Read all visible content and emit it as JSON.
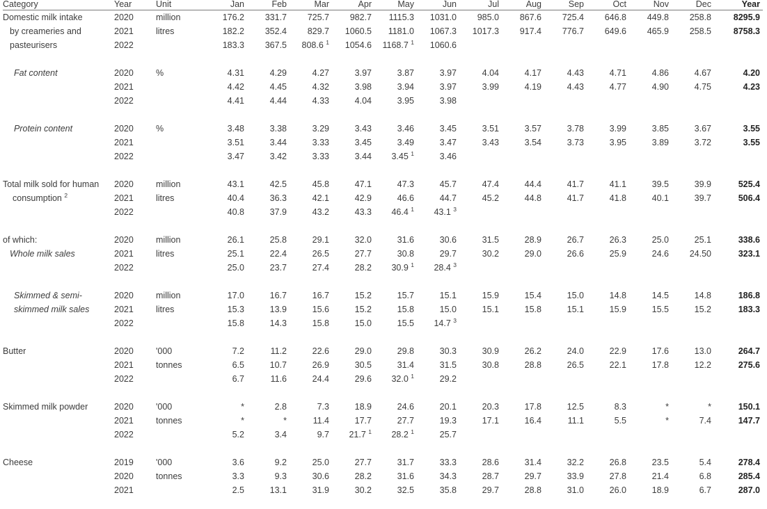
{
  "headers": [
    "Category",
    "Year",
    "Unit",
    "Jan",
    "Feb",
    "Mar",
    "Apr",
    "May",
    "Jun",
    "Jul",
    "Aug",
    "Sep",
    "Oct",
    "Nov",
    "Dec",
    "Year"
  ],
  "groups": [
    {
      "category": [
        "Domestic milk intake",
        "by creameries and",
        "pasteurisers"
      ],
      "style": "plain",
      "unit": [
        "million",
        "litres",
        ""
      ],
      "rows": [
        {
          "year": "2020",
          "values": [
            "176.2",
            "331.7",
            "725.7",
            "982.7",
            "1115.3",
            "1031.0",
            "985.0",
            "867.6",
            "725.4",
            "646.8",
            "449.8",
            "258.8"
          ],
          "total": "8295.9"
        },
        {
          "year": "2021",
          "values": [
            "182.2",
            "352.4",
            "829.7",
            "1060.5",
            "1181.0",
            "1067.3",
            "1017.3",
            "917.4",
            "776.7",
            "649.6",
            "465.9",
            "258.5"
          ],
          "total": "8758.3"
        },
        {
          "year": "2022",
          "values": [
            "183.3",
            "367.5",
            "808.6",
            "1054.6",
            "1168.7",
            "1060.6",
            "",
            "",
            "",
            "",
            "",
            ""
          ],
          "total": ""
        }
      ]
    },
    {
      "category": [
        "Fat content",
        "",
        ""
      ],
      "style": "italic",
      "unit": [
        "%",
        "",
        ""
      ],
      "rows": [
        {
          "year": "2020",
          "values": [
            "4.31",
            "4.29",
            "4.27",
            "3.97",
            "3.87",
            "3.97",
            "4.04",
            "4.17",
            "4.43",
            "4.71",
            "4.86",
            "4.67"
          ],
          "total": "4.20"
        },
        {
          "year": "2021",
          "values": [
            "4.42",
            "4.45",
            "4.32",
            "3.98",
            "3.94",
            "3.97",
            "3.99",
            "4.19",
            "4.43",
            "4.77",
            "4.90",
            "4.75"
          ],
          "total": "4.23"
        },
        {
          "year": "2022",
          "values": [
            "4.41",
            "4.44",
            "4.33",
            "4.04",
            "3.95",
            "3.98",
            "",
            "",
            "",
            "",
            "",
            ""
          ],
          "total": ""
        }
      ]
    },
    {
      "category": [
        "Protein content",
        "",
        ""
      ],
      "style": "italic",
      "unit": [
        "%",
        "",
        ""
      ],
      "rows": [
        {
          "year": "2020",
          "values": [
            "3.48",
            "3.38",
            "3.29",
            "3.43",
            "3.46",
            "3.45",
            "3.51",
            "3.57",
            "3.78",
            "3.99",
            "3.85",
            "3.67"
          ],
          "total": "3.55"
        },
        {
          "year": "2021",
          "values": [
            "3.51",
            "3.44",
            "3.33",
            "3.45",
            "3.49",
            "3.47",
            "3.43",
            "3.54",
            "3.73",
            "3.95",
            "3.89",
            "3.72"
          ],
          "total": "3.55"
        },
        {
          "year": "2022",
          "values": [
            "3.47",
            "3.42",
            "3.33",
            "3.44",
            "3.45",
            "3.46",
            "",
            "",
            "",
            "",
            "",
            ""
          ],
          "total": ""
        }
      ]
    },
    {
      "category": [
        "Total milk sold for human",
        "consumption",
        ""
      ],
      "style": "plain",
      "unit": [
        "million",
        "litres",
        ""
      ],
      "rows": [
        {
          "year": "2020",
          "values": [
            "43.1",
            "42.5",
            "45.8",
            "47.1",
            "47.3",
            "45.7",
            "47.4",
            "44.4",
            "41.7",
            "41.1",
            "39.5",
            "39.9"
          ],
          "total": "525.4"
        },
        {
          "year": "2021",
          "values": [
            "40.4",
            "36.3",
            "42.1",
            "42.9",
            "46.6",
            "44.7",
            "45.2",
            "44.8",
            "41.7",
            "41.8",
            "40.1",
            "39.7"
          ],
          "total": "506.4"
        },
        {
          "year": "2022",
          "values": [
            "40.8",
            "37.9",
            "43.2",
            "43.3",
            "46.4",
            "43.1",
            "",
            "",
            "",
            "",
            "",
            ""
          ],
          "total": ""
        }
      ]
    },
    {
      "category": [
        "of which:",
        "Whole milk sales",
        ""
      ],
      "style": "ofwhich",
      "unit": [
        "million",
        "litres",
        ""
      ],
      "rows": [
        {
          "year": "2020",
          "values": [
            "26.1",
            "25.8",
            "29.1",
            "32.0",
            "31.6",
            "30.6",
            "31.5",
            "28.9",
            "26.7",
            "26.3",
            "25.0",
            "25.1"
          ],
          "total": "338.6"
        },
        {
          "year": "2021",
          "values": [
            "25.1",
            "22.4",
            "26.5",
            "27.7",
            "30.8",
            "29.7",
            "30.2",
            "29.0",
            "26.6",
            "25.9",
            "24.6",
            "24.50"
          ],
          "total": "323.1"
        },
        {
          "year": "2022",
          "values": [
            "25.0",
            "23.7",
            "27.4",
            "28.2",
            "30.9",
            "28.4",
            "",
            "",
            "",
            "",
            "",
            ""
          ],
          "total": ""
        }
      ]
    },
    {
      "category": [
        "Skimmed  & semi-",
        "skimmed milk sales",
        ""
      ],
      "style": "italic",
      "unit": [
        "million",
        "litres",
        ""
      ],
      "rows": [
        {
          "year": "2020",
          "values": [
            "17.0",
            "16.7",
            "16.7",
            "15.2",
            "15.7",
            "15.1",
            "15.9",
            "15.4",
            "15.0",
            "14.8",
            "14.5",
            "14.8"
          ],
          "total": "186.8"
        },
        {
          "year": "2021",
          "values": [
            "15.3",
            "13.9",
            "15.6",
            "15.2",
            "15.8",
            "15.0",
            "15.1",
            "15.8",
            "15.1",
            "15.9",
            "15.5",
            "15.2"
          ],
          "total": "183.3"
        },
        {
          "year": "2022",
          "values": [
            "15.8",
            "14.3",
            "15.8",
            "15.0",
            "15.5",
            "14.7",
            "",
            "",
            "",
            "",
            "",
            ""
          ],
          "total": ""
        }
      ]
    },
    {
      "category": [
        "Butter",
        "",
        ""
      ],
      "style": "plain",
      "unit": [
        "'000",
        "tonnes",
        ""
      ],
      "rows": [
        {
          "year": "2020",
          "values": [
            "7.2",
            "11.2",
            "22.6",
            "29.0",
            "29.8",
            "30.3",
            "30.9",
            "26.2",
            "24.0",
            "22.9",
            "17.6",
            "13.0"
          ],
          "total": "264.7"
        },
        {
          "year": "2021",
          "values": [
            "6.5",
            "10.7",
            "26.9",
            "30.5",
            "31.4",
            "31.5",
            "30.8",
            "28.8",
            "26.5",
            "22.1",
            "17.8",
            "12.2"
          ],
          "total": "275.6"
        },
        {
          "year": "2022",
          "values": [
            "6.7",
            "11.6",
            "24.4",
            "29.6",
            "32.0",
            "29.2",
            "",
            "",
            "",
            "",
            "",
            ""
          ],
          "total": ""
        }
      ]
    },
    {
      "category": [
        "Skimmed milk powder",
        "",
        ""
      ],
      "style": "plain",
      "unit": [
        "'000",
        "tonnes",
        ""
      ],
      "rows": [
        {
          "year": "2020",
          "values": [
            "*",
            "2.8",
            "7.3",
            "18.9",
            "24.6",
            "20.1",
            "20.3",
            "17.8",
            "12.5",
            "8.3",
            "*",
            "*"
          ],
          "total": "150.1"
        },
        {
          "year": "2021",
          "values": [
            "*",
            "*",
            "11.4",
            "17.7",
            "27.7",
            "19.3",
            "17.1",
            "16.4",
            "11.1",
            "5.5",
            "*",
            "7.4"
          ],
          "total": "147.7"
        },
        {
          "year": "2022",
          "values": [
            "5.2",
            "3.4",
            "9.7",
            "21.7",
            "28.2",
            "25.7",
            "",
            "",
            "",
            "",
            "",
            ""
          ],
          "total": ""
        }
      ]
    },
    {
      "category": [
        "Cheese",
        "",
        ""
      ],
      "style": "plain",
      "unit": [
        "'000",
        "tonnes",
        ""
      ],
      "rows": [
        {
          "year": "2019",
          "values": [
            "3.6",
            "9.2",
            "25.0",
            "27.7",
            "31.7",
            "33.3",
            "28.6",
            "31.4",
            "32.2",
            "26.8",
            "23.5",
            "5.4"
          ],
          "total": "278.4"
        },
        {
          "year": "2020",
          "values": [
            "3.3",
            "9.3",
            "30.6",
            "28.2",
            "31.6",
            "34.3",
            "28.7",
            "29.7",
            "33.9",
            "27.8",
            "21.4",
            "6.8"
          ],
          "total": "285.4"
        },
        {
          "year": "2021",
          "values": [
            "2.5",
            "13.1",
            "31.9",
            "30.2",
            "32.5",
            "35.8",
            "29.7",
            "28.8",
            "31.0",
            "26.0",
            "18.9",
            "6.7"
          ],
          "total": "287.0"
        }
      ]
    }
  ],
  "footnotes": [
    {
      "group": 0,
      "row": 2,
      "col": 2,
      "mark": "1"
    },
    {
      "group": 0,
      "row": 2,
      "col": 4,
      "mark": "1"
    },
    {
      "group": 2,
      "row": 2,
      "col": 4,
      "mark": "1"
    },
    {
      "group": 3,
      "row": 2,
      "col": 4,
      "mark": "1"
    },
    {
      "group": 3,
      "row": 2,
      "col": 5,
      "mark": "3"
    },
    {
      "group": 4,
      "row": 2,
      "col": 4,
      "mark": "1"
    },
    {
      "group": 4,
      "row": 2,
      "col": 5,
      "mark": "3"
    },
    {
      "group": 5,
      "row": 2,
      "col": 5,
      "mark": "3"
    },
    {
      "group": 6,
      "row": 2,
      "col": 4,
      "mark": "1"
    },
    {
      "group": 7,
      "row": 2,
      "col": 3,
      "mark": "1"
    },
    {
      "group": 7,
      "row": 2,
      "col": 4,
      "mark": "1"
    }
  ],
  "category_footnotes": [
    {
      "group": 3,
      "line": 1,
      "mark": "2"
    }
  ]
}
